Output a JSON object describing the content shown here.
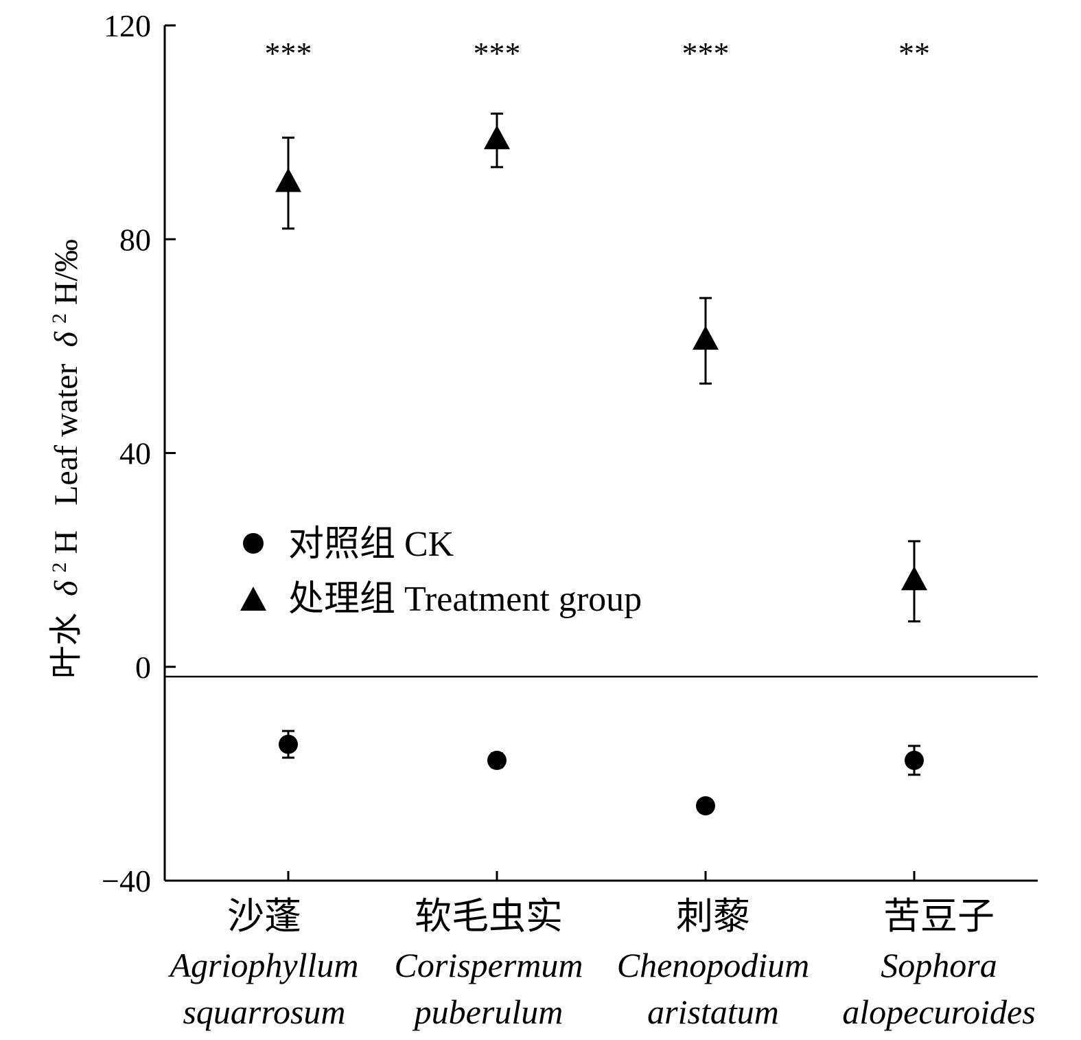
{
  "chart_data": {
    "type": "scatter",
    "title": "",
    "ylabel_cn": "叶水",
    "ylabel_delta": "δ",
    "ylabel_sup": "2",
    "ylabel_H": "H",
    "ylabel_en": "Leaf water",
    "ylabel_unit": "H/‰",
    "ylim": [
      -40,
      120
    ],
    "yticks": [
      -40,
      0,
      40,
      80,
      120
    ],
    "ytick_labels": [
      "−40",
      "0",
      "40",
      "80",
      "120"
    ],
    "zero_line": true,
    "categories": [
      {
        "cn": "沙蓬",
        "latin1": "Agriophyllum",
        "latin2": "squarrosum"
      },
      {
        "cn": "软毛虫实",
        "latin1": "Corispermum",
        "latin2": "puberulum"
      },
      {
        "cn": "刺藜",
        "latin1": "Chenopodium",
        "latin2": "aristatum"
      },
      {
        "cn": "苦豆子",
        "latin1": "Sophora",
        "latin2": "alopecuroides"
      }
    ],
    "series": [
      {
        "name": "对照组 CK",
        "marker": "circle",
        "values": [
          -14.5,
          -17.5,
          -26,
          -17.5
        ],
        "errors": [
          2.5,
          1.3,
          1.0,
          2.7
        ]
      },
      {
        "name": "处理组 Treatment group",
        "marker": "triangle",
        "values": [
          90.5,
          98.5,
          61,
          16
        ],
        "errors": [
          8.5,
          5.0,
          8.0,
          7.5
        ]
      }
    ],
    "significance": [
      "***",
      "***",
      "***",
      "**"
    ],
    "legend_position": "center-left"
  },
  "colors": {
    "ink": "#000000",
    "background": "#ffffff"
  }
}
